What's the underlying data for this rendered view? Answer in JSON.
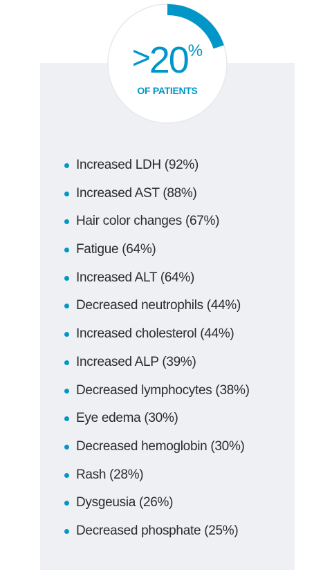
{
  "badge": {
    "operator": ">",
    "value": "20",
    "unit": "%",
    "caption": "OF PATIENTS",
    "gauge_fraction": 0.2,
    "ring_color": "#ffffff",
    "arc_color": "#0096c8"
  },
  "accent_color": "#0096c8",
  "items": [
    {
      "label": "Increased LDH (92%)"
    },
    {
      "label": "Increased AST (88%)"
    },
    {
      "label": "Hair color changes (67%)"
    },
    {
      "label": "Fatigue (64%)"
    },
    {
      "label": "Increased ALT (64%)"
    },
    {
      "label": "Decreased neutrophils (44%)"
    },
    {
      "label": "Increased cholesterol (44%)"
    },
    {
      "label": "Increased ALP (39%)"
    },
    {
      "label": "Decreased lymphocytes (38%)"
    },
    {
      "label": "Eye edema (30%)"
    },
    {
      "label": "Decreased hemoglobin (30%)"
    },
    {
      "label": "Rash (28%)"
    },
    {
      "label": "Dysgeusia (26%)"
    },
    {
      "label": "Decreased phosphate (25%)"
    }
  ]
}
